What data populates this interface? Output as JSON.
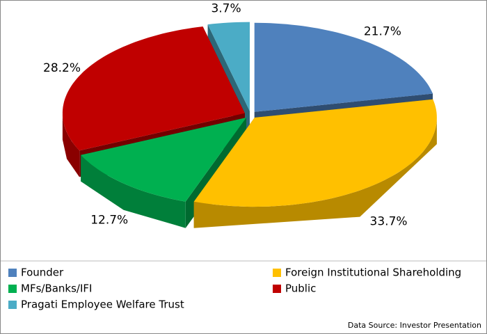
{
  "chart_data": {
    "type": "pie",
    "three_d": true,
    "categories": [
      "Founder",
      "Foreign Institutional Shareholding",
      "MFs/Banks/IFI",
      "Public",
      "Pragati Employee Welfare Trust"
    ],
    "values": [
      21.7,
      33.7,
      12.7,
      28.2,
      3.7
    ],
    "value_labels": [
      "21.7%",
      "33.7%",
      "12.7%",
      "28.2%",
      "3.7%"
    ],
    "colors": [
      "#4f81bd",
      "#ffc000",
      "#00b050",
      "#c00000",
      "#4bacc6"
    ],
    "legend": "bottom",
    "source": "Data Source: Investor Presentation"
  }
}
